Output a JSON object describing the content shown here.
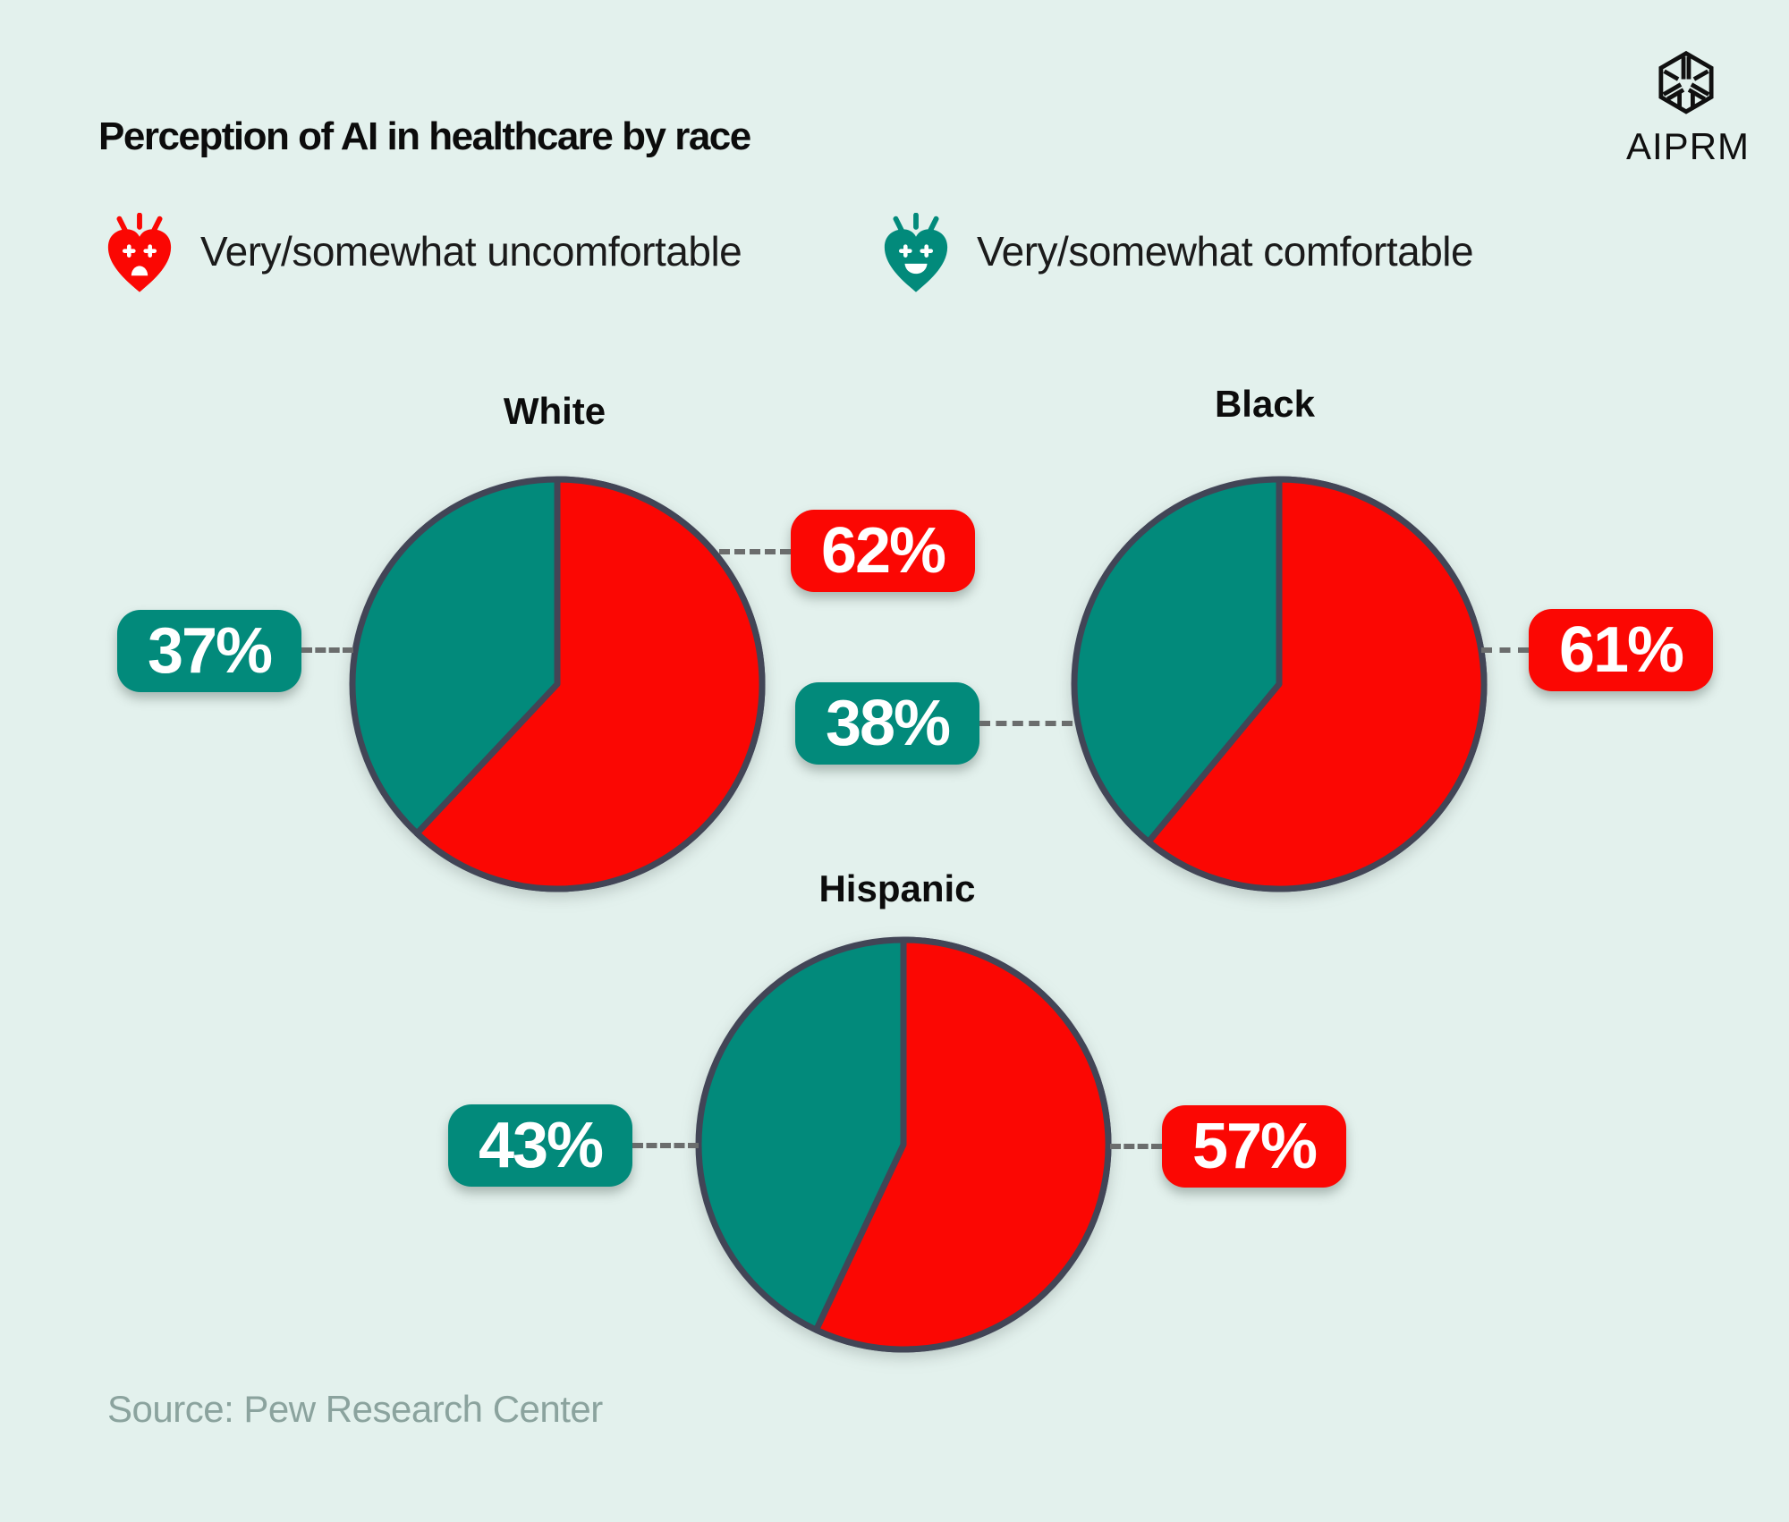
{
  "header": {
    "title": "Perception of AI in healthcare by race"
  },
  "logo": {
    "brand": "AIPRM",
    "icon": "aiprm-hexagon-logo"
  },
  "legend": {
    "items": [
      {
        "label": "Very/somewhat uncomfortable",
        "icon": "uncomfortable-heart-icon",
        "color": "#fb0703"
      },
      {
        "label": "Very/somewhat comfortable",
        "icon": "comfortable-heart-icon",
        "color": "#028a7b"
      }
    ]
  },
  "theme": {
    "background": "#e3f1ed",
    "red": "#fb0703",
    "teal": "#028a7b",
    "pie_outline": "#424556",
    "dash_gray": "#6b6d6d"
  },
  "chart_data": [
    {
      "type": "pie",
      "title": "White",
      "slices": [
        {
          "name": "Very/somewhat uncomfortable",
          "value": 62,
          "label": "62%",
          "color": "#fb0703"
        },
        {
          "name": "Very/somewhat comfortable",
          "value": 37,
          "label": "37%",
          "color": "#028a7b"
        }
      ]
    },
    {
      "type": "pie",
      "title": "Black",
      "slices": [
        {
          "name": "Very/somewhat uncomfortable",
          "value": 61,
          "label": "61%",
          "color": "#fb0703"
        },
        {
          "name": "Very/somewhat comfortable",
          "value": 38,
          "label": "38%",
          "color": "#028a7b"
        }
      ]
    },
    {
      "type": "pie",
      "title": "Hispanic",
      "slices": [
        {
          "name": "Very/somewhat uncomfortable",
          "value": 57,
          "label": "57%",
          "color": "#fb0703"
        },
        {
          "name": "Very/somewhat comfortable",
          "value": 43,
          "label": "43%",
          "color": "#028a7b"
        }
      ]
    }
  ],
  "footer": {
    "source": "Source: Pew Research Center"
  }
}
